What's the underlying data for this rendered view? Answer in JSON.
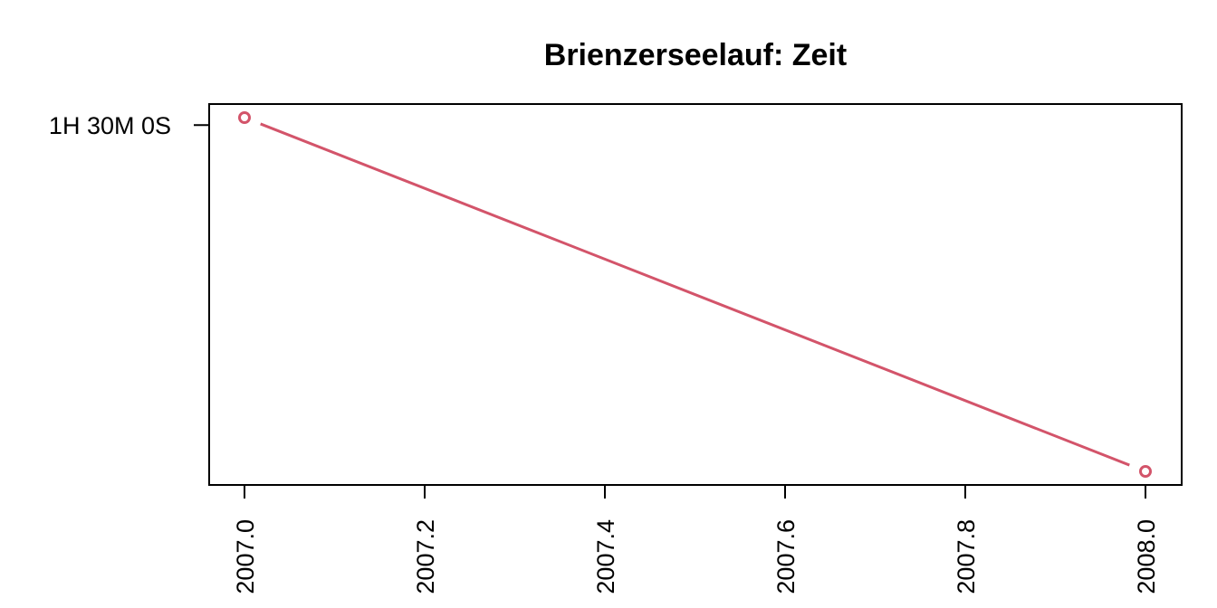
{
  "chart_data": {
    "type": "line",
    "title": "Brienzerseelauf: Zeit",
    "xlabel": "",
    "ylabel": "",
    "xlim": [
      2007.0,
      2008.0
    ],
    "x_ticks": [
      2007.0,
      2007.2,
      2007.4,
      2007.6,
      2007.8,
      2008.0
    ],
    "x_tick_labels": [
      "2007.0",
      "2007.2",
      "2007.4",
      "2007.6",
      "2007.8",
      "2008.0"
    ],
    "y_ticks_seconds": [
      5400
    ],
    "y_tick_labels": [
      "1H 30M 0S"
    ],
    "series": [
      {
        "color": "#d3546a",
        "marker": "open-circle",
        "x": [
          2007.0,
          2008.0
        ],
        "y_seconds": [
          5402,
          5307
        ]
      }
    ],
    "grid": false,
    "legend": "none"
  }
}
